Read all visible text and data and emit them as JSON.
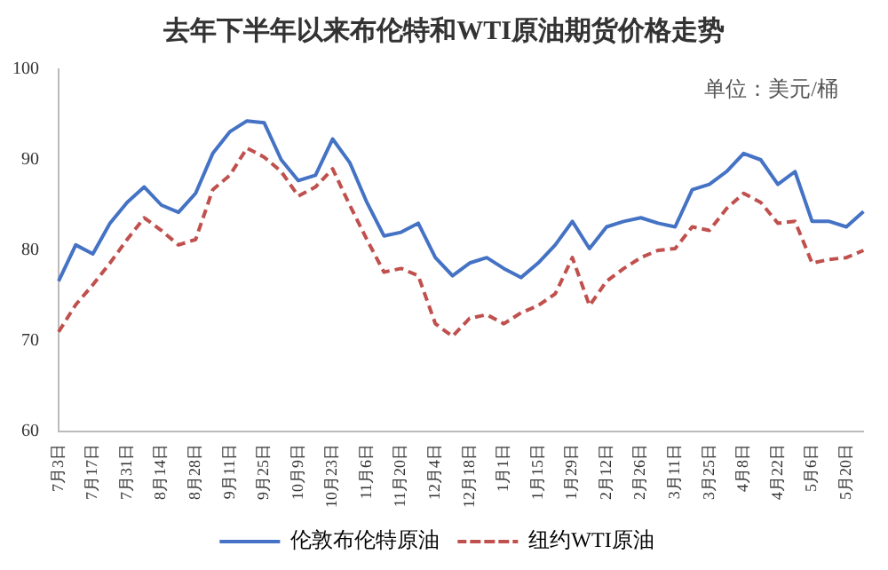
{
  "chart_data": {
    "type": "line",
    "title": "去年下半年以来布伦特和WTI原油期货价格走势",
    "annotations": [
      "单位：美元/桶"
    ],
    "categories": [
      "7月3日",
      null,
      "7月17日",
      null,
      "7月31日",
      null,
      "8月14日",
      null,
      "8月28日",
      null,
      "9月11日",
      null,
      "9月25日",
      null,
      "10月9日",
      null,
      "10月23日",
      null,
      "11月6日",
      null,
      "11月20日",
      null,
      "12月4日",
      null,
      "12月18日",
      null,
      "1月1日",
      null,
      "1月15日",
      null,
      "1月29日",
      null,
      "2月12日",
      null,
      "2月26日",
      null,
      "3月11日",
      null,
      "3月25日",
      null,
      "4月8日",
      null,
      "4月22日",
      null,
      "5月6日",
      null,
      "5月20日",
      null
    ],
    "series": [
      {
        "name": "伦敦布伦特原油",
        "color": "#4472c4",
        "line_style": "solid",
        "values": [
          76.6,
          80.6,
          79.6,
          83,
          85.3,
          87,
          85,
          84.2,
          86.3,
          90.7,
          93.1,
          94.3,
          94.1,
          90,
          87.7,
          88.3,
          92.3,
          89.7,
          85.3,
          81.6,
          82,
          83,
          79.2,
          77.2,
          78.6,
          79.2,
          78,
          77,
          78.6,
          80.6,
          83.2,
          80.2,
          82.6,
          83.2,
          83.6,
          83,
          82.6,
          86.7,
          87.3,
          88.7,
          90.7,
          90,
          87.3,
          88.7,
          83.2,
          83.2,
          82.6,
          84.3
        ]
      },
      {
        "name": "纽约WTI原油",
        "color": "#c0504d",
        "line_style": "dashed",
        "values": [
          71,
          74,
          76.2,
          78.6,
          81.2,
          83.6,
          82.2,
          80.6,
          81.2,
          86.7,
          88.3,
          91.3,
          90.3,
          88.7,
          86,
          87,
          89,
          85,
          81.2,
          77.6,
          78,
          77.2,
          71.9,
          70.5,
          72.5,
          72.9,
          71.9,
          73.1,
          73.9,
          75.2,
          79.2,
          73.9,
          76.6,
          78,
          79.2,
          80,
          80.2,
          82.6,
          82.2,
          84.6,
          86.3,
          85.3,
          83,
          83.2,
          78.6,
          79,
          79.2,
          80
        ]
      }
    ],
    "ylim": [
      60,
      100
    ],
    "yticks": [
      60,
      70,
      80,
      90,
      100
    ],
    "grid": false,
    "legend": "bottom",
    "marker": "none"
  }
}
